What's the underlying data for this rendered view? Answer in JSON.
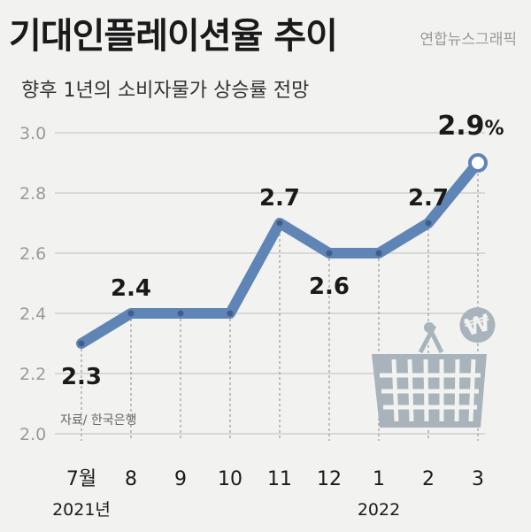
{
  "title": "기대인플레이션율 추이",
  "brand": "연합뉴스그래픽",
  "subtitle": "향후 1년의 소비자물가 상승률 전망",
  "credit": "자료/ 한국은행",
  "chart_data": {
    "type": "line",
    "x": [
      "7월",
      "8",
      "9",
      "10",
      "11",
      "12",
      "1",
      "2",
      "3"
    ],
    "year_labels": [
      "2021년",
      "2022"
    ],
    "values": [
      2.3,
      2.4,
      2.4,
      2.4,
      2.7,
      2.6,
      2.6,
      2.7,
      2.9
    ],
    "data_labels": [
      {
        "index": 0,
        "text": "2.3"
      },
      {
        "index": 1,
        "text": "2.4"
      },
      {
        "index": 4,
        "text": "2.7"
      },
      {
        "index": 5,
        "text": "2.6"
      },
      {
        "index": 7,
        "text": "2.7"
      },
      {
        "index": 8,
        "text": "2.9",
        "unit": "%"
      }
    ],
    "ylim": [
      2.0,
      3.0
    ],
    "yticks": [
      "2.0",
      "2.2",
      "2.4",
      "2.6",
      "2.8",
      "3.0"
    ],
    "grid": true,
    "line_color": "#5f84b6",
    "grid_color": "#c9c9c9"
  }
}
